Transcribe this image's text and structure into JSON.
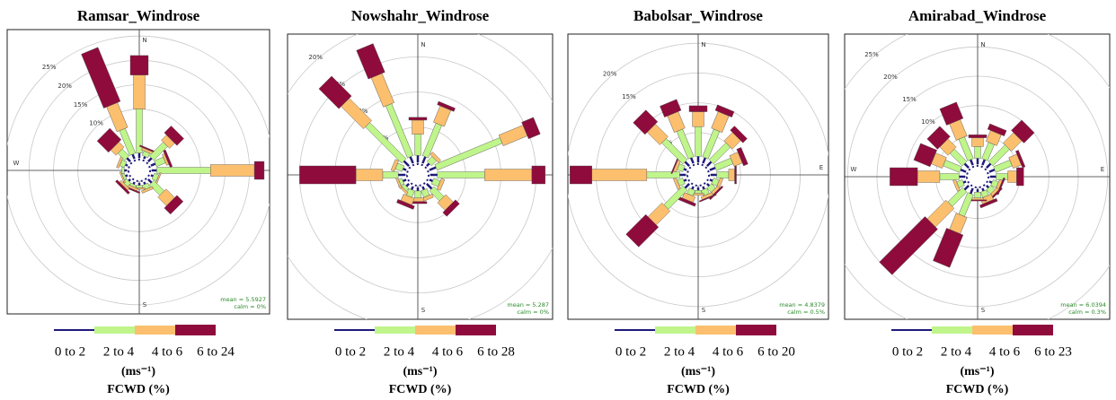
{
  "chart_data": [
    {
      "type": "windrose",
      "title": "Ramsar_Windrose",
      "compass": [
        "N",
        null,
        "S",
        "W"
      ],
      "rlim": [
        0,
        30
      ],
      "rticks": [
        {
          "value": 10,
          "label": "10%"
        },
        {
          "value": 15,
          "label": "15%"
        },
        {
          "value": 20,
          "label": "20%"
        },
        {
          "value": 25,
          "label": "25%"
        }
      ],
      "series": [
        {
          "name": "0 to 2",
          "color": "#1f1a7a",
          "values": [
            1,
            0.5,
            1,
            1,
            1,
            0.5,
            1,
            0.5,
            0.5,
            0.5,
            0.5,
            0.5,
            0.5,
            0.5,
            1,
            1
          ]
        },
        {
          "name": "2 to 4",
          "color": "#bff58a",
          "values": [
            9,
            1,
            4,
            2,
            11,
            1,
            3,
            1,
            0.5,
            0.5,
            1,
            0.5,
            0.5,
            1,
            2,
            5.5
          ]
        },
        {
          "name": "4 to 6",
          "color": "#fbbf6e",
          "values": [
            7,
            0.5,
            1.5,
            0.5,
            9,
            0.3,
            2.5,
            0.5,
            0.3,
            0.5,
            0.5,
            0.3,
            0,
            0.5,
            1.5,
            5.5
          ]
        },
        {
          "name": "6 to 24",
          "color": "#8e0b3c",
          "values": [
            4,
            0.3,
            2,
            0.5,
            2,
            0,
            1.8,
            0,
            0,
            0.3,
            0.5,
            0,
            0,
            0,
            3.3,
            12
          ]
        }
      ],
      "mean": "mean = 5.5927",
      "calm": "calm = 0%",
      "units": "(ms⁻¹)",
      "value_label": "FCWD (%)"
    },
    {
      "type": "windrose",
      "title": "Nowshahr_Windrose",
      "compass": [
        "N",
        null,
        "S",
        null
      ],
      "rlim": [
        0,
        25
      ],
      "rticks": [
        {
          "value": 5,
          "label": "5%"
        },
        {
          "value": 10,
          "label": "10%"
        },
        {
          "value": 15,
          "label": "15%"
        },
        {
          "value": 20,
          "label": "20%"
        }
      ],
      "series": [
        {
          "name": "0 to 2",
          "color": "#1f1a7a",
          "values": [
            1,
            1,
            0.5,
            1,
            1,
            0.5,
            1,
            0.5,
            0.5,
            0.5,
            0.5,
            0.5,
            1,
            0.5,
            1,
            1
          ]
        },
        {
          "name": "2 to 4",
          "color": "#bff58a",
          "values": [
            3,
            5,
            1,
            10,
            6.7,
            1,
            2,
            1,
            1,
            1,
            0.5,
            0.5,
            2.2,
            1,
            7.3,
            8
          ]
        },
        {
          "name": "4 to 6",
          "color": "#fbbf6e",
          "values": [
            2,
            2.5,
            0.5,
            3.7,
            6.7,
            0.5,
            1.5,
            0.5,
            0.5,
            1,
            0.3,
            0.3,
            3.8,
            0.5,
            4.5,
            4.5
          ]
        },
        {
          "name": "6 to 28",
          "color": "#8e0b3c",
          "values": [
            0.4,
            0.5,
            0,
            1.8,
            1.9,
            0,
            0.8,
            0,
            0.3,
            0.5,
            0,
            0,
            8,
            0,
            4,
            4.4
          ]
        }
      ],
      "mean": "mean = 5.287",
      "calm": "calm = 0%",
      "units": "(ms⁻¹)",
      "value_label": "FCWD (%)"
    },
    {
      "type": "windrose",
      "title": "Babolsar_Windrose",
      "compass": [
        "N",
        "E",
        "S",
        null
      ],
      "rlim": [
        0,
        25
      ],
      "rticks": [
        {
          "value": 5,
          "label": "5%"
        },
        {
          "value": 10,
          "label": "10%"
        },
        {
          "value": 15,
          "label": "15%"
        },
        {
          "value": 20,
          "label": "20%"
        }
      ],
      "series": [
        {
          "name": "0 to 2",
          "color": "#1f1a7a",
          "values": [
            1,
            1,
            1,
            1,
            1,
            0.5,
            0.5,
            0.5,
            0.5,
            0.5,
            1,
            0.5,
            1,
            0.5,
            1,
            1
          ]
        },
        {
          "name": "2 to 4",
          "color": "#bff58a",
          "values": [
            5,
            5,
            4,
            3,
            2,
            1,
            1,
            1,
            0.5,
            1,
            4.5,
            1,
            5.5,
            1,
            5,
            5
          ]
        },
        {
          "name": "4 to 6",
          "color": "#fbbf6e",
          "values": [
            2.5,
            3,
            2,
            1.5,
            1,
            0.5,
            0.5,
            0.5,
            0.3,
            1,
            3.3,
            0.5,
            9.2,
            0.5,
            3,
            3
          ]
        },
        {
          "name": "6 to 20",
          "color": "#8e0b3c",
          "values": [
            1,
            1,
            1,
            0.8,
            0.3,
            0,
            0.3,
            0.2,
            0,
            0.5,
            4.7,
            0,
            3.7,
            0.2,
            2.8,
            2
          ]
        }
      ],
      "mean": "mean = 4.8379",
      "calm": "calm = 0.5%",
      "units": "(ms⁻¹)",
      "value_label": "FCWD (%)"
    },
    {
      "type": "windrose",
      "title": "Amirabad_Windrose",
      "compass": [
        "N",
        "E",
        "S",
        "W"
      ],
      "rlim": [
        0,
        30
      ],
      "rticks": [
        {
          "value": 5,
          "label": "5%"
        },
        {
          "value": 10,
          "label": "10%"
        },
        {
          "value": 15,
          "label": "15%"
        },
        {
          "value": 20,
          "label": "20%"
        },
        {
          "value": 25,
          "label": "25%"
        }
      ],
      "series": [
        {
          "name": "0 to 2",
          "color": "#1f1a7a",
          "values": [
            1,
            1,
            1,
            1,
            1,
            0.5,
            0.5,
            0.5,
            0.5,
            1,
            1,
            0.5,
            1,
            1,
            1,
            1
          ]
        },
        {
          "name": "2 to 4",
          "color": "#bff58a",
          "values": [
            2,
            3,
            4,
            3,
            2,
            1,
            1,
            1,
            1,
            4,
            3.5,
            1,
            3.3,
            3,
            3,
            4
          ]
        },
        {
          "name": "4 to 6",
          "color": "#fbbf6e",
          "values": [
            1.5,
            2,
            2.5,
            1.5,
            1.5,
            0.5,
            0.5,
            1,
            0.3,
            3,
            4.5,
            0.5,
            3.8,
            2,
            2,
            3
          ]
        },
        {
          "name": "6 to 23",
          "color": "#8e0b3c",
          "values": [
            0.5,
            1,
            2.5,
            0.5,
            1.2,
            0.3,
            0.3,
            0.5,
            0.2,
            6,
            11,
            0,
            4.7,
            3,
            2.5,
            3
          ]
        }
      ],
      "mean": "mean = 6.0394",
      "calm": "calm = 0.3%",
      "units": "(ms⁻¹)",
      "value_label": "FCWD (%)"
    }
  ]
}
